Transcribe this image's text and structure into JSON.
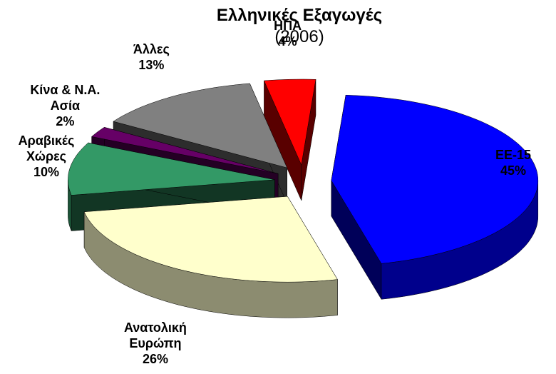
{
  "chart_data": {
    "type": "pie",
    "title": "Ελληνικές Εξαγωγές",
    "subtitle": "(2006)",
    "categories": [
      "ΕΕ-15",
      "Ανατολική Ευρώπη",
      "Αραβικές Χώρες",
      "Κίνα & Ν.Α. Ασία",
      "Άλλες",
      "ΗΠΑ"
    ],
    "values": [
      45,
      26,
      10,
      2,
      13,
      4
    ],
    "value_labels": [
      "45%",
      "26%",
      "10%",
      "2%",
      "13%",
      "4%"
    ],
    "colors": [
      "#0000ff",
      "#ffffcc",
      "#339966",
      "#660066",
      "#808080",
      "#ff0000"
    ]
  }
}
